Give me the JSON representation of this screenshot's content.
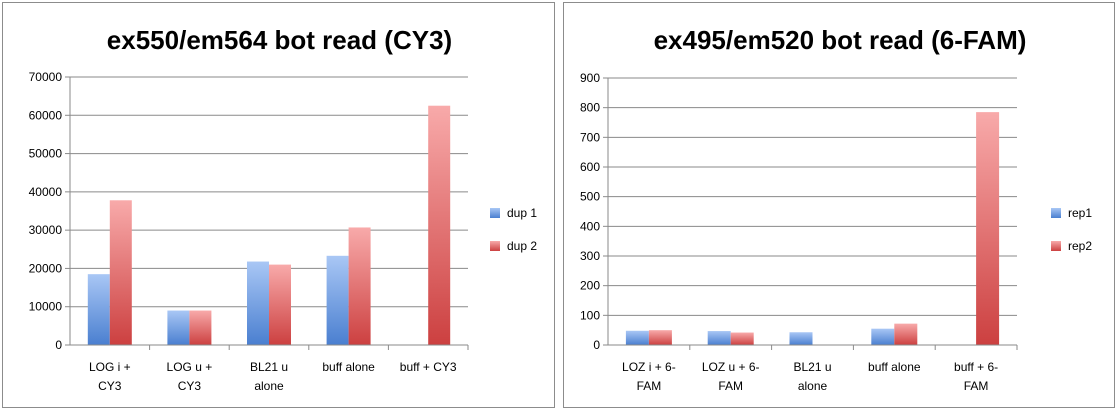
{
  "chart_data": [
    {
      "type": "bar",
      "title": "ex550/em564 bot read (CY3)",
      "categories": [
        [
          "LOG i +",
          "CY3"
        ],
        [
          "LOG u +",
          "CY3"
        ],
        [
          "BL21 u",
          "alone"
        ],
        [
          "buff alone"
        ],
        [
          "buff + CY3"
        ]
      ],
      "series": [
        {
          "name": "dup 1",
          "values": [
            18500,
            9000,
            21800,
            23300,
            0
          ]
        },
        {
          "name": "dup 2",
          "values": [
            37800,
            9000,
            21000,
            30700,
            62500
          ]
        }
      ],
      "ylim": [
        0,
        70000
      ],
      "yticks": [
        0,
        10000,
        20000,
        30000,
        40000,
        50000,
        60000,
        70000
      ],
      "grid": true,
      "legend": "right",
      "colors": {
        "dup 1": {
          "light": "#a9c7f5",
          "dark": "#4a7fd0"
        },
        "dup 2": {
          "light": "#f8aaaa",
          "dark": "#cc4040"
        }
      }
    },
    {
      "type": "bar",
      "title": "ex495/em520 bot read (6-FAM)",
      "categories": [
        [
          "LOZ i + 6-",
          "FAM"
        ],
        [
          "LOZ u + 6-",
          "FAM"
        ],
        [
          "BL21 u",
          "alone"
        ],
        [
          "buff alone"
        ],
        [
          "buff + 6-",
          "FAM"
        ]
      ],
      "series": [
        {
          "name": "rep1",
          "values": [
            48,
            47,
            43,
            55,
            0
          ]
        },
        {
          "name": "rep2",
          "values": [
            50,
            42,
            0,
            72,
            785
          ]
        }
      ],
      "ylim": [
        0,
        900
      ],
      "yticks": [
        0,
        100,
        200,
        300,
        400,
        500,
        600,
        700,
        800,
        900
      ],
      "grid": true,
      "legend": "right",
      "colors": {
        "rep1": {
          "light": "#a9c7f5",
          "dark": "#4a7fd0"
        },
        "rep2": {
          "light": "#f8aaaa",
          "dark": "#cc4040"
        }
      }
    }
  ]
}
